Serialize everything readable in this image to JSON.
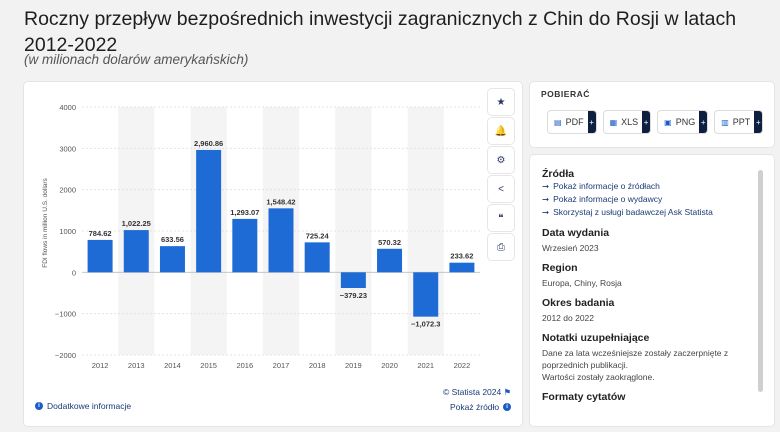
{
  "header": {
    "title": "Roczny przepływ bezpośrednich inwestycji zagranicznych z Chin do Rosji w latach 2012-2022",
    "subtitle": "(w milionach dolarów amerykańskich)"
  },
  "chart_data": {
    "type": "bar",
    "categories": [
      "2012",
      "2013",
      "2014",
      "2015",
      "2016",
      "2017",
      "2018",
      "2019",
      "2020",
      "2021",
      "2022"
    ],
    "values": [
      784.62,
      1022.25,
      633.56,
      2960.86,
      1293.07,
      1548.42,
      725.24,
      -379.23,
      570.32,
      -1072.3,
      233.62
    ],
    "value_labels": [
      "784.62",
      "1,022.25",
      "633.56",
      "2,960.86",
      "1,293.07",
      "1,548.42",
      "725.24",
      "−379.23",
      "570.32",
      "−1,072.3",
      "233.62"
    ],
    "ylabel": "FDI flows in million U.S. dollars",
    "ylim": [
      -2000,
      4000
    ],
    "yticks": [
      4000,
      3000,
      2000,
      1000,
      0,
      -1000,
      -2000
    ],
    "ytick_labels": [
      "4000",
      "3000",
      "2000",
      "1000",
      "0",
      "−1000",
      "−2000"
    ],
    "grid": true,
    "bar_color": "#1f6bd6"
  },
  "chart_footer": {
    "copyright": "© Statista 2024",
    "more_info": "Dodatkowe informacje",
    "show_source": "Pokaż źródło"
  },
  "toolbar": {
    "icons": [
      "star-icon",
      "bell-icon",
      "gear-icon",
      "share-icon",
      "quote-icon",
      "print-icon"
    ],
    "glyphs": [
      "★",
      "🔔",
      "⚙",
      "<",
      "❝",
      "⎙"
    ]
  },
  "download": {
    "title": "POBIERAĆ",
    "buttons": [
      {
        "label": "PDF",
        "icon": "pdf-icon"
      },
      {
        "label": "XLS",
        "icon": "xls-icon"
      },
      {
        "label": "PNG",
        "icon": "png-icon"
      },
      {
        "label": "PPT",
        "icon": "ppt-icon"
      }
    ],
    "plus": "+"
  },
  "info": {
    "sources_title": "Źródła",
    "source_links": [
      "Pokaż informacje o źródłach",
      "Pokaż informacje o wydawcy",
      "Skorzystaj z usługi badawczej Ask Statista"
    ],
    "arrow": "➞",
    "release_title": "Data wydania",
    "release_value": "Wrzesień 2023",
    "region_title": "Region",
    "region_value": "Europa, Chiny, Rosja",
    "period_title": "Okres badania",
    "period_value": "2012 do 2022",
    "notes_title": "Notatki uzupełniające",
    "notes_value": "Dane za lata wcześniejsze zostały zaczerpnięte z poprzednich publikacji.",
    "notes_value2": "Wartości zostały zaokrąglone.",
    "citation_title": "Formaty cytatów"
  }
}
